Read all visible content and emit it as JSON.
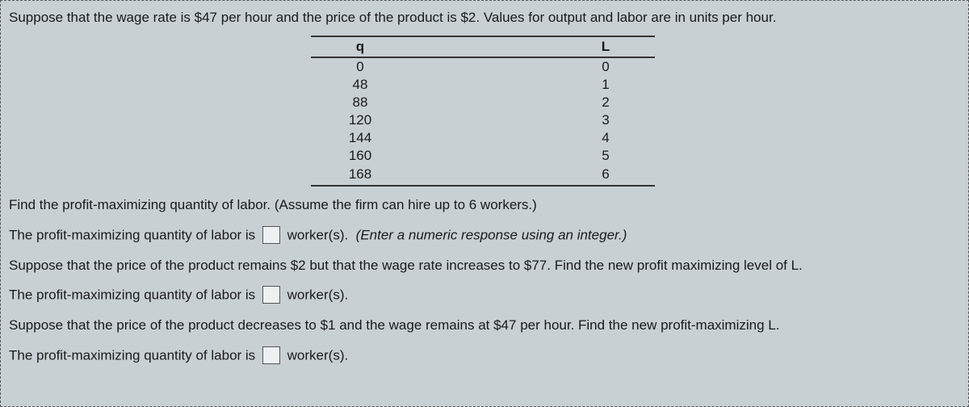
{
  "intro": "Suppose that the wage rate is $47 per hour and the price of the product is $2.  Values for output and labor are in units per hour.",
  "table": {
    "headers": {
      "q": "q",
      "L": "L"
    },
    "rows": [
      {
        "q": "0",
        "L": "0"
      },
      {
        "q": "48",
        "L": "1"
      },
      {
        "q": "88",
        "L": "2"
      },
      {
        "q": "120",
        "L": "3"
      },
      {
        "q": "144",
        "L": "4"
      },
      {
        "q": "160",
        "L": "5"
      },
      {
        "q": "168",
        "L": "6"
      }
    ]
  },
  "q1": {
    "prompt": "Find the profit-maximizing quantity of labor.  (Assume the firm can hire up to 6 workers.)",
    "lead": "The profit-maximizing quantity of labor is",
    "unit": "worker(s).",
    "hint": "(Enter a numeric response using an integer.)"
  },
  "q2": {
    "prompt": "Suppose that the price of the product remains $2 but that the wage rate increases to $77.  Find the new profit maximizing level of L.",
    "lead": "The profit-maximizing quantity of labor is",
    "unit": "worker(s)."
  },
  "q3": {
    "prompt": "Suppose that the price of the product decreases to $1 and the wage remains at $47 per hour.  Find the new profit-maximizing L.",
    "lead": "The profit-maximizing quantity of labor is",
    "unit": "worker(s)."
  }
}
